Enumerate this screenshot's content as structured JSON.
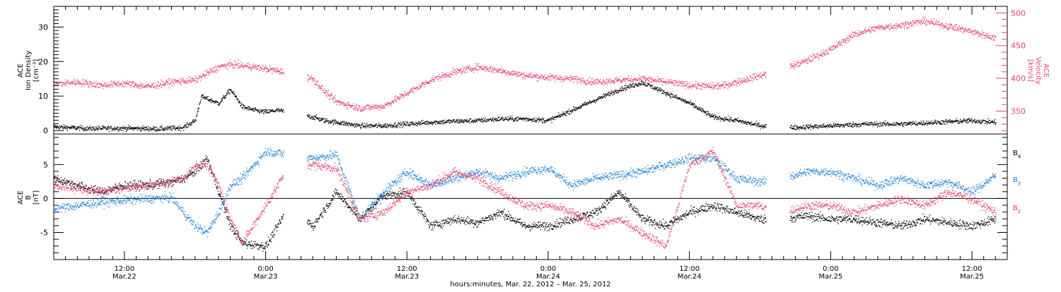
{
  "chart_data": [
    {
      "type": "scatter",
      "panel": "top",
      "ylabel_left": [
        "ACE",
        "Ion Density",
        "[cm⁻³]"
      ],
      "ylabel_right": [
        "ACE",
        "Velocity",
        "[km/s]"
      ],
      "y_left_ticks": [
        0,
        10,
        20,
        30
      ],
      "y_left_range": [
        -1,
        36
      ],
      "y_right_ticks": [
        350,
        400,
        450,
        500
      ],
      "y_right_range": [
        315,
        510
      ],
      "x_range_hours": [
        -18,
        63
      ],
      "gaps_hours": [
        [
          1.5,
          3.5
        ],
        [
          42.5,
          44.5
        ]
      ],
      "series": [
        {
          "name": "Ion Density",
          "axis": "left",
          "color": "#000000",
          "x": [
            -18,
            -15,
            -12,
            -9,
            -7,
            -6,
            -5.5,
            -4,
            -3,
            -2,
            -1,
            0,
            1,
            4,
            5,
            6,
            8,
            10,
            12,
            14,
            16,
            18,
            20,
            22,
            24,
            26,
            28,
            30,
            32,
            34,
            36,
            38,
            40,
            42,
            45,
            48,
            51,
            54,
            57,
            60,
            62
          ],
          "y": [
            1.2,
            0.7,
            0.8,
            0.6,
            1.0,
            3.0,
            10.0,
            8.0,
            12.0,
            7.0,
            6.0,
            5.5,
            6.0,
            4.0,
            3.0,
            2.5,
            1.5,
            1.5,
            2.0,
            2.5,
            2.8,
            3.0,
            3.5,
            3.5,
            3.0,
            6.0,
            9.0,
            12.0,
            14.0,
            11.0,
            8.0,
            4.0,
            3.0,
            1.5,
            1.0,
            1.5,
            2.0,
            2.0,
            2.5,
            3.0,
            2.5
          ]
        },
        {
          "name": "Velocity",
          "axis": "right",
          "color": "#e8436a",
          "x": [
            -18,
            -16,
            -14,
            -12,
            -10,
            -8,
            -6,
            -4,
            -3,
            -2,
            -1,
            0,
            1,
            4,
            5,
            6,
            8,
            10,
            12,
            14,
            16,
            18,
            20,
            22,
            24,
            26,
            28,
            30,
            32,
            34,
            36,
            38,
            39,
            40,
            42,
            44,
            46,
            48,
            50,
            52,
            54,
            56,
            58,
            60,
            62
          ],
          "y": [
            392,
            395,
            390,
            393,
            388,
            395,
            398,
            418,
            422,
            420,
            418,
            415,
            412,
            400,
            380,
            365,
            355,
            358,
            378,
            398,
            410,
            418,
            412,
            405,
            402,
            400,
            395,
            398,
            400,
            395,
            390,
            388,
            390,
            395,
            405,
            415,
            428,
            445,
            468,
            478,
            482,
            488,
            480,
            472,
            462
          ]
        }
      ]
    },
    {
      "type": "scatter",
      "panel": "bottom",
      "ylabel": [
        "ACE",
        "B",
        "[nT]"
      ],
      "y_ticks": [
        -5,
        0,
        5
      ],
      "y_range": [
        -9,
        9.5
      ],
      "xlabel": "hours:minutes, Mar. 22, 2012 – Mar. 25, 2012",
      "x_range_hours": [
        -18,
        63
      ],
      "x_ticks": [
        {
          "hour": -12,
          "time": "12:00",
          "date": "Mar.22"
        },
        {
          "hour": 0,
          "time": "0:00",
          "date": "Mar.23"
        },
        {
          "hour": 12,
          "time": "12:00",
          "date": "Mar.23"
        },
        {
          "hour": 24,
          "time": "0:00",
          "date": "Mar.24"
        },
        {
          "hour": 36,
          "time": "12:00",
          "date": "Mar.24"
        },
        {
          "hour": 48,
          "time": "0:00",
          "date": "Mar.25"
        },
        {
          "hour": 60,
          "time": "12:00",
          "date": "Mar.25"
        }
      ],
      "gaps_hours": [
        [
          1.5,
          3.5
        ],
        [
          42.5,
          44.5
        ]
      ],
      "series": [
        {
          "name": "Bx",
          "label_main": "B",
          "label_sub": "x",
          "color": "#000000",
          "x": [
            -18,
            -16,
            -14,
            -12,
            -10,
            -8,
            -7,
            -6,
            -5,
            -4,
            -3,
            -2,
            0,
            2,
            4,
            6,
            8,
            10,
            12,
            14,
            16,
            18,
            20,
            22,
            24,
            26,
            28,
            30,
            32,
            34,
            36,
            38,
            40,
            42,
            44,
            46,
            48,
            50,
            52,
            54,
            56,
            58,
            60,
            62
          ],
          "y": [
            3,
            2,
            1,
            2,
            2,
            2.5,
            3,
            4,
            6,
            1,
            -4,
            -6.5,
            -7,
            -1,
            -4,
            1,
            -3,
            0.5,
            1,
            -4,
            -3,
            -3.5,
            -2,
            -4,
            -4,
            -3,
            -2,
            1,
            -3,
            -4,
            -2,
            -1,
            -2,
            -3,
            -3,
            -2.5,
            -3,
            -3,
            -3.5,
            -4,
            -3,
            -3.5,
            -4,
            -3
          ]
        },
        {
          "name": "By",
          "label_main": "B",
          "label_sub": "y",
          "color": "#1f7fe0",
          "x": [
            -18,
            -16,
            -14,
            -12,
            -10,
            -8,
            -7,
            -6,
            -5,
            -4,
            -3,
            -2,
            0,
            2,
            4,
            6,
            8,
            10,
            12,
            14,
            16,
            18,
            20,
            22,
            24,
            26,
            28,
            30,
            32,
            34,
            36,
            38,
            40,
            42,
            44,
            46,
            48,
            50,
            52,
            54,
            56,
            58,
            60,
            62
          ],
          "y": [
            -1.5,
            -1,
            -0.5,
            -0.2,
            0,
            0.2,
            -2,
            -4,
            -5,
            -2,
            2,
            3,
            7,
            6.5,
            6,
            6.5,
            -3,
            1,
            4,
            2,
            3,
            4,
            3,
            4,
            4.5,
            2,
            3,
            3.5,
            4,
            5,
            6,
            6,
            3,
            2.5,
            3,
            4,
            4,
            3,
            2,
            3,
            2,
            2.5,
            1,
            3.5
          ]
        },
        {
          "name": "Bz",
          "label_main": "B",
          "label_sub": "z",
          "color": "#e8436a",
          "x": [
            -18,
            -16,
            -14,
            -12,
            -10,
            -8,
            -7,
            -6,
            -5,
            -4,
            -3,
            -2,
            0,
            2,
            4,
            6,
            8,
            10,
            12,
            14,
            16,
            18,
            20,
            22,
            24,
            26,
            28,
            30,
            32,
            34,
            36,
            38,
            40,
            42,
            44,
            46,
            48,
            50,
            52,
            54,
            56,
            58,
            60,
            62
          ],
          "y": [
            2,
            1.5,
            1,
            1.5,
            2,
            2.5,
            3,
            5,
            5,
            2,
            -3,
            -6.5,
            -1,
            5,
            5,
            4.5,
            -3,
            -2,
            1,
            2,
            4,
            3,
            1,
            -1,
            -1,
            -2,
            -4,
            -3,
            -5,
            -7,
            5,
            7,
            -1,
            -1,
            -2,
            -1,
            -1,
            -2,
            -1,
            0,
            -1,
            1,
            0,
            -2
          ]
        }
      ]
    }
  ]
}
